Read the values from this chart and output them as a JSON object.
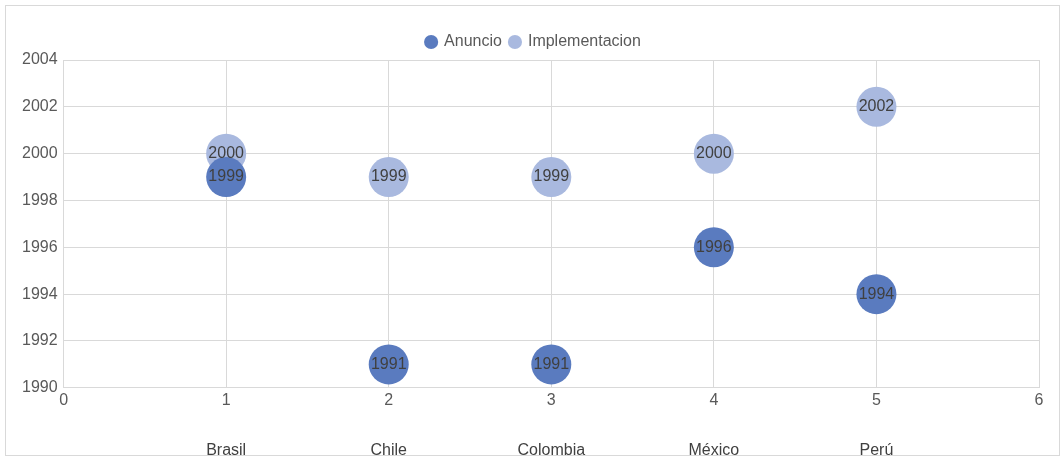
{
  "chart_data": {
    "type": "bubble",
    "x": [
      1,
      2,
      3,
      4,
      5
    ],
    "series": [
      {
        "name": "Anuncio",
        "color": "#5a7bbf",
        "values": [
          1999,
          1991,
          1991,
          1996,
          1994
        ],
        "sizes": [
          1,
          1,
          1,
          1,
          1
        ]
      },
      {
        "name": "Implementacion",
        "color": "#a9b9df",
        "values": [
          2000,
          1999,
          1999,
          2000,
          2002
        ],
        "sizes": [
          1,
          1,
          1,
          1,
          1
        ]
      }
    ],
    "xlim": [
      0,
      6
    ],
    "xticks": [
      0,
      1,
      2,
      3,
      4,
      5,
      6
    ],
    "ylim": [
      1990,
      2004
    ],
    "yticks": [
      1990,
      1992,
      1994,
      1996,
      1998,
      2000,
      2002,
      2004
    ],
    "annotations": [
      "Brasil",
      "Chile",
      "Colombia",
      "México",
      "Perú"
    ],
    "data_labels": true,
    "grid": true,
    "legend": "top"
  }
}
